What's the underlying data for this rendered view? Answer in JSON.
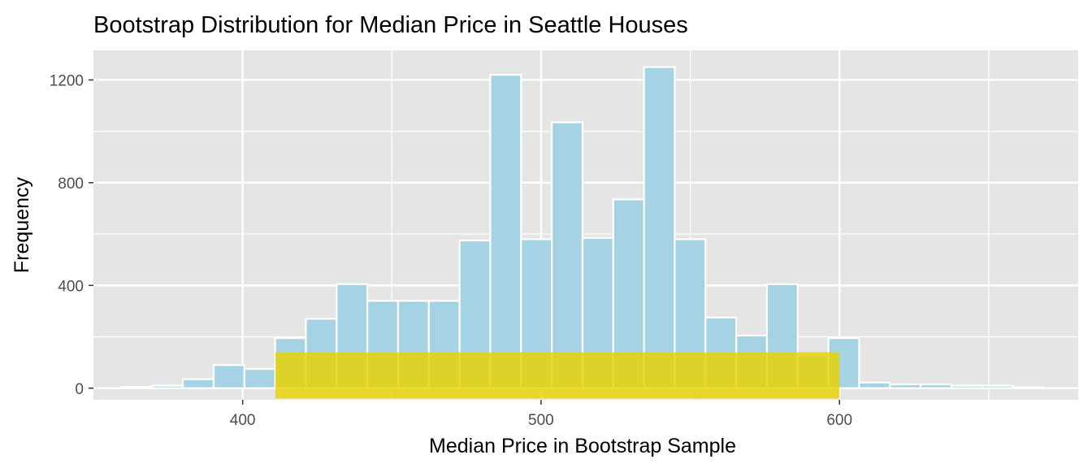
{
  "chart_data": {
    "type": "bar",
    "title": "Bootstrap Distribution for Median Price in Seattle Houses",
    "xlabel": "Median Price in Bootstrap Sample",
    "ylabel": "Frequency",
    "x_ticks": [
      400,
      500,
      600
    ],
    "y_ticks": [
      0,
      400,
      800,
      1200
    ],
    "xlim": [
      350,
      680
    ],
    "ylim": [
      -45,
      1315
    ],
    "grid": true,
    "bin_width": 10.3,
    "bins": [
      {
        "x0": 359.4,
        "x1": 369.7,
        "count": 5
      },
      {
        "x0": 369.7,
        "x1": 380.0,
        "count": 10
      },
      {
        "x0": 380.0,
        "x1": 390.3,
        "count": 35
      },
      {
        "x0": 390.3,
        "x1": 400.6,
        "count": 90
      },
      {
        "x0": 400.6,
        "x1": 410.9,
        "count": 75
      },
      {
        "x0": 410.9,
        "x1": 421.2,
        "count": 195
      },
      {
        "x0": 421.2,
        "x1": 431.5,
        "count": 270
      },
      {
        "x0": 431.5,
        "x1": 441.8,
        "count": 405
      },
      {
        "x0": 441.8,
        "x1": 452.1,
        "count": 340
      },
      {
        "x0": 452.1,
        "x1": 462.4,
        "count": 340
      },
      {
        "x0": 462.4,
        "x1": 472.7,
        "count": 340
      },
      {
        "x0": 472.7,
        "x1": 483.0,
        "count": 575
      },
      {
        "x0": 483.0,
        "x1": 493.3,
        "count": 1220
      },
      {
        "x0": 493.3,
        "x1": 503.6,
        "count": 580
      },
      {
        "x0": 503.6,
        "x1": 513.9,
        "count": 1035
      },
      {
        "x0": 513.9,
        "x1": 524.2,
        "count": 585
      },
      {
        "x0": 524.2,
        "x1": 534.5,
        "count": 735
      },
      {
        "x0": 534.5,
        "x1": 544.8,
        "count": 1250
      },
      {
        "x0": 544.8,
        "x1": 555.1,
        "count": 580
      },
      {
        "x0": 555.1,
        "x1": 565.4,
        "count": 275
      },
      {
        "x0": 565.4,
        "x1": 575.7,
        "count": 205
      },
      {
        "x0": 575.7,
        "x1": 586.0,
        "count": 405
      },
      {
        "x0": 586.0,
        "x1": 596.3,
        "count": 130
      },
      {
        "x0": 596.3,
        "x1": 606.6,
        "count": 195
      },
      {
        "x0": 606.6,
        "x1": 616.9,
        "count": 22
      },
      {
        "x0": 616.9,
        "x1": 627.2,
        "count": 15
      },
      {
        "x0": 627.2,
        "x1": 637.5,
        "count": 15
      },
      {
        "x0": 637.5,
        "x1": 647.8,
        "count": 10
      },
      {
        "x0": 647.8,
        "x1": 658.1,
        "count": 10
      },
      {
        "x0": 658.1,
        "x1": 668.4,
        "count": 3
      }
    ],
    "highlight_interval": {
      "x0": 411,
      "x1": 600,
      "y0": -40,
      "y1": 140
    },
    "colors": {
      "panel_background": "#e5e5e5",
      "grid": "#ffffff",
      "bar_fill": "#a6d3e4",
      "bar_outline": "#ffffff",
      "highlight_fill": "#e8d200",
      "highlight_opacity": 0.82,
      "tick_label": "#4d4d4d",
      "tick_mark": "#333333"
    }
  }
}
